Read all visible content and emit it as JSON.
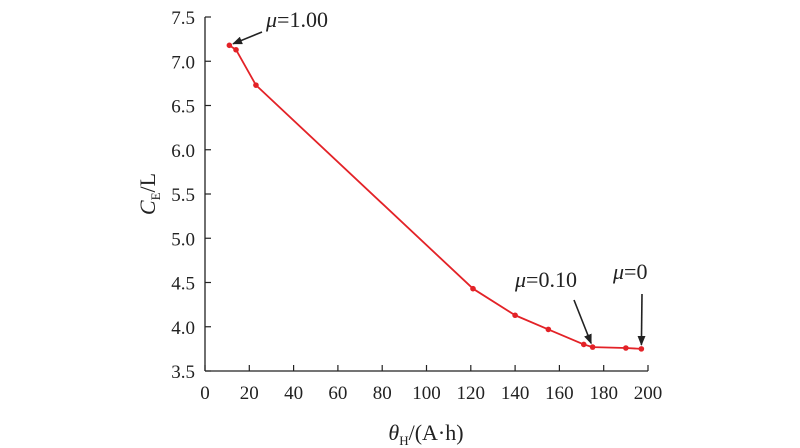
{
  "chart_data": {
    "type": "line",
    "xlabel": {
      "main": "θ",
      "sub": "H",
      "rest": "/(A·h)"
    },
    "ylabel": {
      "main": "C",
      "sub": "E",
      "rest": "/L"
    },
    "xlim": [
      0,
      200
    ],
    "ylim": [
      3.5,
      7.5
    ],
    "xticks": [
      0,
      20,
      40,
      60,
      80,
      100,
      120,
      140,
      160,
      180,
      200
    ],
    "yticks": [
      3.5,
      4.0,
      4.5,
      5.0,
      5.5,
      6.0,
      6.5,
      7.0,
      7.5
    ],
    "xtick_labels": [
      "0",
      "20",
      "40",
      "60",
      "80",
      "100",
      "120",
      "140",
      "160",
      "180",
      "200"
    ],
    "ytick_labels": [
      "3.5",
      "4.0",
      "4.5",
      "5.0",
      "5.5",
      "6.0",
      "6.5",
      "7.0",
      "7.5"
    ],
    "grid": false,
    "series": [
      {
        "color": "#e32227",
        "x": [
          11,
          14,
          23,
          121,
          140,
          155,
          171,
          175,
          190,
          197
        ],
        "y": [
          7.18,
          7.13,
          6.73,
          4.43,
          4.13,
          3.97,
          3.8,
          3.77,
          3.76,
          3.75
        ]
      }
    ],
    "annotations": [
      {
        "symbol": "μ",
        "text": "=1.00",
        "target_x": 11,
        "target_y": 7.18
      },
      {
        "symbol": "μ",
        "text": "=0.10",
        "target_x": 175,
        "target_y": 3.77
      },
      {
        "symbol": "μ",
        "text": "=0",
        "target_x": 197,
        "target_y": 3.75
      }
    ]
  }
}
